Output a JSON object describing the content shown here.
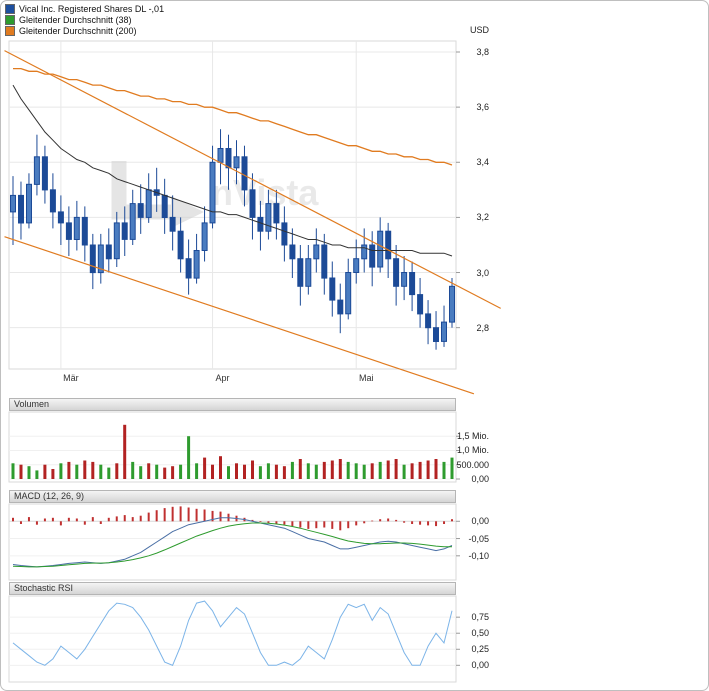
{
  "legend": {
    "items": [
      {
        "label": "Vical Inc. Registered Shares DL -,01",
        "color": "#1d4f9e"
      },
      {
        "label": "Gleitender Durchschnitt (38)",
        "color": "#2e9b2e"
      },
      {
        "label": "Gleitender Durchschnitt (200)",
        "color": "#e07b20"
      }
    ],
    "currency_label": "USD"
  },
  "panels": {
    "volume_header": "Volumen",
    "macd_header": "MACD (12, 26, 9)",
    "stoch_header": "Stochastic RSI"
  },
  "watermark": {
    "text": "nVista"
  },
  "chart_data": [
    {
      "id": "price",
      "type": "candlestick",
      "title": "Vical Inc. Registered Shares DL -,01",
      "unit": "USD",
      "ylim": [
        2.65,
        3.84
      ],
      "grid": true,
      "down_color": "#1c4a97",
      "up_color": "#4a7cc0",
      "y_ticks": [
        {
          "value": 3.8,
          "label": "3,8"
        },
        {
          "value": 3.6,
          "label": "3,6"
        },
        {
          "value": 3.4,
          "label": "3,4"
        },
        {
          "value": 3.2,
          "label": "3,2"
        },
        {
          "value": 3.0,
          "label": "3,0"
        },
        {
          "value": 2.8,
          "label": "2,8"
        }
      ],
      "x_ticks": [
        {
          "index": 6,
          "label": "Mär"
        },
        {
          "index": 25,
          "label": "Apr"
        },
        {
          "index": 43,
          "label": "Mai"
        }
      ],
      "candles": [
        [
          3.22,
          3.35,
          3.1,
          3.28
        ],
        [
          3.28,
          3.33,
          3.12,
          3.18
        ],
        [
          3.18,
          3.36,
          3.16,
          3.32
        ],
        [
          3.32,
          3.5,
          3.28,
          3.42
        ],
        [
          3.42,
          3.46,
          3.25,
          3.3
        ],
        [
          3.3,
          3.36,
          3.16,
          3.22
        ],
        [
          3.22,
          3.28,
          3.1,
          3.18
        ],
        [
          3.18,
          3.24,
          3.06,
          3.12
        ],
        [
          3.12,
          3.26,
          3.08,
          3.2
        ],
        [
          3.2,
          3.24,
          3.04,
          3.1
        ],
        [
          3.1,
          3.14,
          2.94,
          3.0
        ],
        [
          3.0,
          3.14,
          2.96,
          3.1
        ],
        [
          3.1,
          3.16,
          3.0,
          3.05
        ],
        [
          3.05,
          3.22,
          3.02,
          3.18
        ],
        [
          3.18,
          3.24,
          3.06,
          3.12
        ],
        [
          3.12,
          3.3,
          3.1,
          3.25
        ],
        [
          3.25,
          3.32,
          3.14,
          3.2
        ],
        [
          3.2,
          3.36,
          3.18,
          3.3
        ],
        [
          3.3,
          3.38,
          3.22,
          3.28
        ],
        [
          3.28,
          3.34,
          3.14,
          3.2
        ],
        [
          3.2,
          3.28,
          3.08,
          3.15
        ],
        [
          3.15,
          3.2,
          3.0,
          3.05
        ],
        [
          3.05,
          3.12,
          2.92,
          2.98
        ],
        [
          2.98,
          3.14,
          2.96,
          3.08
        ],
        [
          3.08,
          3.24,
          3.04,
          3.18
        ],
        [
          3.18,
          3.46,
          3.16,
          3.4
        ],
        [
          3.4,
          3.52,
          3.32,
          3.45
        ],
        [
          3.45,
          3.5,
          3.3,
          3.38
        ],
        [
          3.38,
          3.48,
          3.32,
          3.42
        ],
        [
          3.42,
          3.46,
          3.24,
          3.3
        ],
        [
          3.3,
          3.36,
          3.12,
          3.2
        ],
        [
          3.2,
          3.26,
          3.08,
          3.15
        ],
        [
          3.15,
          3.3,
          3.12,
          3.25
        ],
        [
          3.25,
          3.3,
          3.12,
          3.18
        ],
        [
          3.18,
          3.24,
          3.04,
          3.1
        ],
        [
          3.1,
          3.16,
          2.98,
          3.05
        ],
        [
          3.05,
          3.1,
          2.88,
          2.95
        ],
        [
          2.95,
          3.1,
          2.92,
          3.05
        ],
        [
          3.05,
          3.16,
          3.0,
          3.1
        ],
        [
          3.1,
          3.14,
          2.92,
          2.98
        ],
        [
          2.98,
          3.04,
          2.84,
          2.9
        ],
        [
          2.9,
          2.96,
          2.78,
          2.85
        ],
        [
          2.85,
          3.05,
          2.83,
          3.0
        ],
        [
          3.0,
          3.12,
          2.96,
          3.05
        ],
        [
          3.05,
          3.16,
          3.0,
          3.1
        ],
        [
          3.1,
          3.15,
          2.95,
          3.02
        ],
        [
          3.02,
          3.2,
          3.0,
          3.15
        ],
        [
          3.15,
          3.18,
          2.98,
          3.05
        ],
        [
          3.05,
          3.1,
          2.88,
          2.95
        ],
        [
          2.95,
          3.06,
          2.9,
          3.0
        ],
        [
          3.0,
          3.04,
          2.86,
          2.92
        ],
        [
          2.92,
          2.98,
          2.8,
          2.85
        ],
        [
          2.85,
          2.9,
          2.74,
          2.8
        ],
        [
          2.8,
          2.86,
          2.72,
          2.75
        ],
        [
          2.75,
          2.88,
          2.73,
          2.82
        ],
        [
          2.82,
          2.98,
          2.8,
          2.95
        ]
      ],
      "series": [
        {
          "name": "Gleitender Durchschnitt (38)",
          "color": "#333333",
          "values": [
            3.68,
            3.63,
            3.59,
            3.55,
            3.51,
            3.48,
            3.45,
            3.43,
            3.41,
            3.4,
            3.38,
            3.37,
            3.36,
            3.34,
            3.33,
            3.32,
            3.31,
            3.3,
            3.29,
            3.28,
            3.27,
            3.26,
            3.25,
            3.24,
            3.23,
            3.22,
            3.22,
            3.21,
            3.21,
            3.2,
            3.19,
            3.18,
            3.17,
            3.16,
            3.15,
            3.14,
            3.13,
            3.12,
            3.12,
            3.11,
            3.1,
            3.1,
            3.09,
            3.09,
            3.09,
            3.08,
            3.08,
            3.08,
            3.08,
            3.08,
            3.08,
            3.07,
            3.07,
            3.07,
            3.07,
            3.06
          ]
        },
        {
          "name": "Gleitender Durchschnitt (200)",
          "color": "#e07b20",
          "values": [
            3.74,
            3.74,
            3.73,
            3.73,
            3.72,
            3.72,
            3.71,
            3.7,
            3.7,
            3.69,
            3.68,
            3.68,
            3.67,
            3.66,
            3.66,
            3.65,
            3.64,
            3.64,
            3.63,
            3.63,
            3.62,
            3.62,
            3.61,
            3.61,
            3.6,
            3.6,
            3.59,
            3.58,
            3.58,
            3.57,
            3.56,
            3.55,
            3.55,
            3.54,
            3.53,
            3.52,
            3.51,
            3.5,
            3.5,
            3.49,
            3.48,
            3.47,
            3.46,
            3.46,
            3.45,
            3.44,
            3.44,
            3.43,
            3.43,
            3.42,
            3.42,
            3.41,
            3.41,
            3.4,
            3.4,
            3.39
          ]
        }
      ],
      "trendlines": [
        {
          "name": "upper-channel",
          "color": "#e07b20",
          "x1": -0.01,
          "p1": 3.805,
          "x2": 1.1,
          "p2": 2.87
        },
        {
          "name": "lower-channel",
          "color": "#e07b20",
          "x1": -0.01,
          "p1": 3.13,
          "x2": 1.04,
          "p2": 2.56
        }
      ]
    },
    {
      "id": "volume",
      "type": "bar",
      "title": "Volumen",
      "ylim": [
        0,
        2.35
      ],
      "up_color": "#2e9b2e",
      "down_color": "#b22222",
      "y_ticks": [
        {
          "value": 1.5,
          "label": "1,5 Mio."
        },
        {
          "value": 1.0,
          "label": "1,0 Mio."
        },
        {
          "value": 0.5,
          "label": "500.000"
        },
        {
          "value": 0.0,
          "label": "0,00"
        }
      ],
      "values": [
        0.55,
        0.5,
        0.45,
        0.3,
        0.5,
        0.35,
        0.55,
        0.6,
        0.5,
        0.65,
        0.6,
        0.5,
        0.4,
        0.55,
        1.9,
        0.6,
        0.45,
        0.55,
        0.5,
        0.4,
        0.45,
        0.5,
        1.5,
        0.55,
        0.75,
        0.5,
        0.8,
        0.45,
        0.55,
        0.5,
        0.65,
        0.45,
        0.55,
        0.5,
        0.45,
        0.6,
        0.7,
        0.55,
        0.5,
        0.6,
        0.65,
        0.7,
        0.6,
        0.55,
        0.5,
        0.55,
        0.6,
        0.65,
        0.7,
        0.5,
        0.55,
        0.6,
        0.65,
        0.7,
        0.6,
        0.75
      ],
      "colors": [
        "g",
        "r",
        "g",
        "g",
        "r",
        "r",
        "g",
        "r",
        "g",
        "r",
        "r",
        "g",
        "g",
        "r",
        "r",
        "g",
        "g",
        "r",
        "g",
        "r",
        "r",
        "g",
        "g",
        "g",
        "r",
        "r",
        "r",
        "g",
        "r",
        "r",
        "r",
        "g",
        "g",
        "r",
        "r",
        "g",
        "r",
        "g",
        "g",
        "r",
        "r",
        "r",
        "g",
        "g",
        "g",
        "r",
        "g",
        "r",
        "r",
        "g",
        "r",
        "r",
        "r",
        "r",
        "g",
        "g"
      ]
    },
    {
      "id": "macd",
      "type": "line",
      "title": "MACD (12, 26, 9)",
      "ylim": [
        -0.17,
        0.05
      ],
      "y_ticks": [
        {
          "value": 0.0,
          "label": "0,00"
        },
        {
          "value": -0.05,
          "label": "-0,05"
        },
        {
          "value": -0.1,
          "label": "-0,10"
        }
      ],
      "histogram": {
        "color": "#c03030",
        "values": [
          0.01,
          -0.008,
          0.012,
          -0.01,
          0.008,
          0.01,
          -0.012,
          0.01,
          0.008,
          -0.01,
          0.012,
          -0.008,
          0.01,
          0.014,
          0.018,
          0.012,
          0.016,
          0.025,
          0.032,
          0.038,
          0.042,
          0.043,
          0.04,
          0.036,
          0.034,
          0.03,
          0.028,
          0.022,
          0.016,
          0.01,
          0.004,
          -0.002,
          -0.006,
          -0.008,
          -0.01,
          -0.014,
          -0.018,
          -0.022,
          -0.02,
          -0.018,
          -0.022,
          -0.026,
          -0.02,
          -0.012,
          -0.006,
          0.002,
          0.006,
          0.008,
          0.004,
          -0.004,
          -0.008,
          -0.01,
          -0.012,
          -0.014,
          -0.008,
          0.006
        ]
      },
      "series": [
        {
          "name": "MACD",
          "color": "#4a6fa5",
          "values": [
            -0.125,
            -0.128,
            -0.13,
            -0.132,
            -0.13,
            -0.128,
            -0.125,
            -0.122,
            -0.12,
            -0.118,
            -0.12,
            -0.122,
            -0.12,
            -0.115,
            -0.11,
            -0.1,
            -0.09,
            -0.075,
            -0.06,
            -0.045,
            -0.03,
            -0.02,
            -0.01,
            -0.005,
            0.0,
            0.005,
            0.01,
            0.01,
            0.008,
            0.005,
            0.0,
            -0.005,
            -0.01,
            -0.015,
            -0.02,
            -0.03,
            -0.04,
            -0.05,
            -0.055,
            -0.06,
            -0.07,
            -0.08,
            -0.08,
            -0.075,
            -0.07,
            -0.065,
            -0.06,
            -0.058,
            -0.06,
            -0.065,
            -0.07,
            -0.075,
            -0.08,
            -0.085,
            -0.08,
            -0.07
          ]
        },
        {
          "name": "Signal",
          "color": "#2e9b2e",
          "values": [
            -0.13,
            -0.131,
            -0.132,
            -0.132,
            -0.131,
            -0.13,
            -0.128,
            -0.126,
            -0.124,
            -0.122,
            -0.121,
            -0.121,
            -0.12,
            -0.118,
            -0.115,
            -0.111,
            -0.106,
            -0.1,
            -0.092,
            -0.083,
            -0.073,
            -0.063,
            -0.053,
            -0.043,
            -0.035,
            -0.027,
            -0.02,
            -0.014,
            -0.01,
            -0.007,
            -0.005,
            -0.005,
            -0.006,
            -0.008,
            -0.011,
            -0.015,
            -0.02,
            -0.026,
            -0.032,
            -0.038,
            -0.044,
            -0.051,
            -0.057,
            -0.061,
            -0.064,
            -0.065,
            -0.065,
            -0.064,
            -0.063,
            -0.063,
            -0.064,
            -0.066,
            -0.069,
            -0.072,
            -0.074,
            -0.074
          ]
        }
      ]
    },
    {
      "id": "stoch",
      "type": "line",
      "title": "Stochastic RSI",
      "ylim": [
        -0.26,
        1.08
      ],
      "y_ticks": [
        {
          "value": 0.75,
          "label": "0,75"
        },
        {
          "value": 0.5,
          "label": "0,50"
        },
        {
          "value": 0.25,
          "label": "0,25"
        },
        {
          "value": 0.0,
          "label": "0,00"
        }
      ],
      "series": [
        {
          "name": "Stochastic RSI",
          "color": "#7cb4e8",
          "values": [
            0.35,
            0.25,
            0.15,
            0.05,
            0.0,
            0.1,
            0.3,
            0.2,
            0.1,
            0.25,
            0.45,
            0.65,
            0.85,
            0.97,
            0.95,
            0.9,
            0.75,
            0.55,
            0.3,
            0.05,
            0.0,
            0.3,
            0.7,
            0.97,
            1.0,
            0.85,
            0.6,
            0.75,
            0.9,
            0.8,
            0.5,
            0.2,
            0.0,
            0.0,
            0.05,
            0.0,
            0.1,
            0.3,
            0.2,
            0.1,
            0.4,
            0.75,
            0.95,
            0.9,
            0.95,
            0.7,
            0.9,
            0.8,
            0.5,
            0.2,
            0.0,
            0.0,
            0.3,
            0.5,
            0.35,
            0.85
          ]
        }
      ]
    }
  ]
}
